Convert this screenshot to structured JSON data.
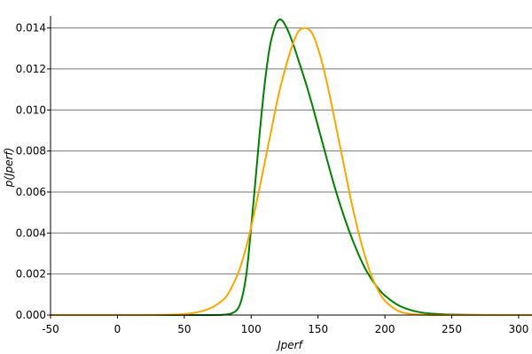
{
  "chart_data": {
    "type": "line",
    "xlabel": "Jperf",
    "ylabel": "p(Jperf)",
    "xlim": [
      -50,
      310
    ],
    "ylim": [
      0,
      0.0145
    ],
    "x_ticks": [
      -50,
      0,
      50,
      100,
      150,
      200,
      250,
      300
    ],
    "y_ticks": [
      0,
      0.002,
      0.004,
      0.006,
      0.008,
      0.01,
      0.012,
      0.014
    ],
    "y_tick_labels": [
      "0.000",
      "0.002",
      "0.004",
      "0.006",
      "0.008",
      "0.010",
      "0.012",
      "0.014"
    ],
    "grid": "horizontal",
    "legend": "none",
    "series": [
      {
        "color": "#008000",
        "x": [
          -50,
          60,
          80,
          86,
          90,
          93,
          96,
          98,
          100,
          103,
          106,
          110,
          114,
          118,
          121,
          124,
          128,
          132,
          136,
          140,
          145,
          150,
          155,
          160,
          165,
          170,
          175,
          180,
          185,
          190,
          195,
          200,
          210,
          220,
          230,
          240,
          250,
          270,
          290,
          310
        ],
        "y": [
          0,
          0,
          2e-05,
          0.0001,
          0.0003,
          0.0008,
          0.0018,
          0.0029,
          0.0043,
          0.0064,
          0.0086,
          0.0112,
          0.0131,
          0.0141,
          0.0144,
          0.0143,
          0.0138,
          0.0131,
          0.0123,
          0.0115,
          0.0104,
          0.0092,
          0.008,
          0.0068,
          0.0057,
          0.0047,
          0.0038,
          0.003,
          0.0023,
          0.00175,
          0.0013,
          0.00095,
          0.00048,
          0.00023,
          0.0001,
          5e-05,
          2e-05,
          5e-06,
          0,
          0
        ]
      },
      {
        "color": "#ffa500",
        "x": [
          -50,
          20,
          40,
          50,
          60,
          70,
          80,
          85,
          90,
          95,
          100,
          105,
          110,
          115,
          120,
          125,
          130,
          135,
          140,
          145,
          150,
          155,
          160,
          165,
          170,
          175,
          180,
          185,
          190,
          195,
          200,
          210,
          220,
          230,
          240,
          260,
          280,
          310
        ],
        "y": [
          0,
          0,
          2e-05,
          5e-05,
          0.00014,
          0.00035,
          0.0008,
          0.0013,
          0.002,
          0.003,
          0.0043,
          0.0058,
          0.0074,
          0.009,
          0.0106,
          0.0119,
          0.013,
          0.0138,
          0.014,
          0.0138,
          0.013,
          0.0118,
          0.0103,
          0.0087,
          0.0071,
          0.0055,
          0.0041,
          0.0029,
          0.0019,
          0.0012,
          0.0007,
          0.0002,
          5e-05,
          1e-05,
          0,
          0,
          0,
          0
        ]
      }
    ]
  }
}
